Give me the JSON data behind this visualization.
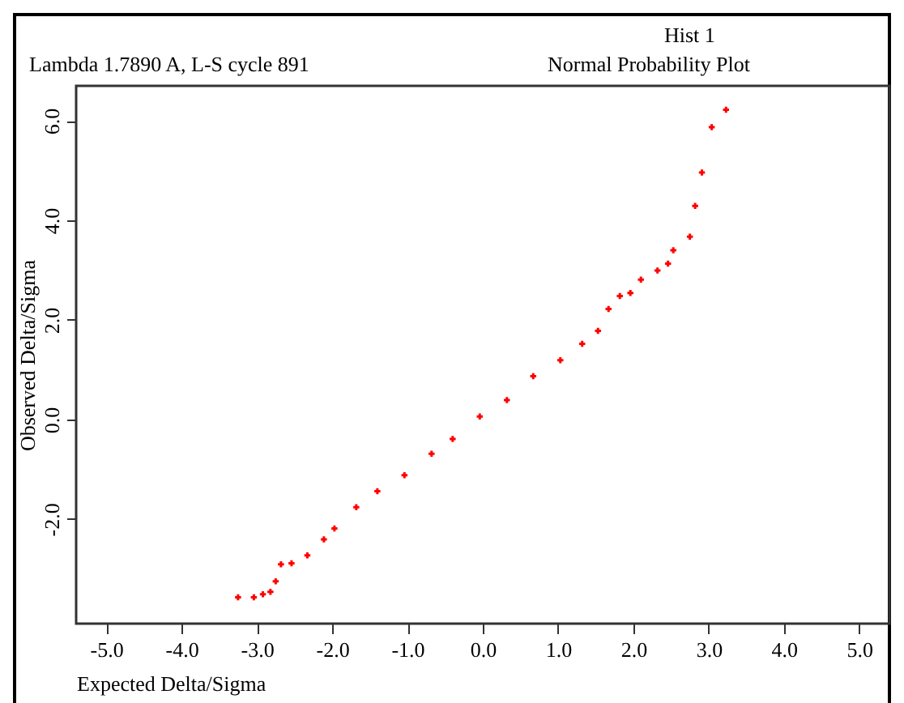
{
  "chart_data": {
    "type": "scatter",
    "title": "Normal Probability Plot",
    "subtitle": "Hist 1",
    "annotations": [
      "Lambda 1.7890 A, L-S cycle 891"
    ],
    "xlabel": "Expected Delta/Sigma",
    "ylabel": "Observed Delta/Sigma",
    "x": [
      -3.25,
      -3.04,
      -2.92,
      -2.82,
      -2.75,
      -2.68,
      -2.54,
      -2.33,
      -2.11,
      -1.97,
      -1.68,
      -1.4,
      -1.04,
      -0.68,
      -0.4,
      -0.04,
      0.32,
      0.67,
      1.03,
      1.32,
      1.53,
      1.67,
      1.82,
      1.96,
      2.1,
      2.32,
      2.46,
      2.53,
      2.75,
      2.82,
      2.91,
      3.04,
      3.23
    ],
    "series": [
      {
        "color": "#ff0000",
        "values": [
          -3.57,
          -3.57,
          -3.51,
          -3.46,
          -3.25,
          -2.91,
          -2.89,
          -2.73,
          -2.41,
          -2.19,
          -1.76,
          -1.44,
          -1.12,
          -0.69,
          -0.39,
          0.06,
          0.39,
          0.87,
          1.19,
          1.52,
          1.78,
          2.22,
          2.48,
          2.54,
          2.81,
          2.99,
          3.13,
          3.4,
          3.67,
          4.29,
          4.96,
          5.87,
          6.22
        ]
      }
    ],
    "xlim": [
      -5.4,
      5.4
    ],
    "xticks": [
      {
        "value": -5,
        "label": "-5.0"
      },
      {
        "value": -4,
        "label": "-4.0"
      },
      {
        "value": -3,
        "label": "-3.0"
      },
      {
        "value": -2,
        "label": "-2.0"
      },
      {
        "value": -1,
        "label": "-1.0"
      },
      {
        "value": 0,
        "label": "0.0"
      },
      {
        "value": 1,
        "label": "1.0"
      },
      {
        "value": 2,
        "label": "2.0"
      },
      {
        "value": 3,
        "label": "3.0"
      },
      {
        "value": 4,
        "label": "4.0"
      },
      {
        "value": 5,
        "label": "5.0"
      }
    ],
    "ylim": [
      -4.1,
      6.7
    ],
    "yticks": [
      {
        "value": -2,
        "label": "-2.0"
      },
      {
        "value": 0,
        "label": "0.0"
      },
      {
        "value": 2,
        "label": "2.0"
      },
      {
        "value": 4,
        "label": "4.0"
      },
      {
        "value": 6,
        "label": "6.0"
      }
    ],
    "grid": false,
    "marker": "cross"
  }
}
